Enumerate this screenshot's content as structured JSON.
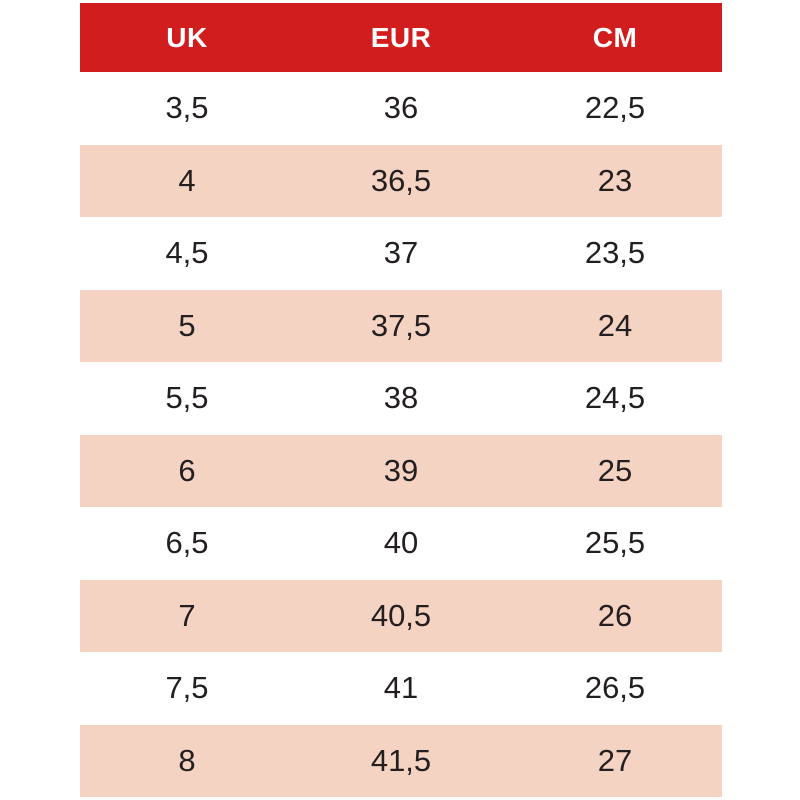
{
  "table": {
    "name": "shoe-size-conversion-table",
    "headers": [
      "UK",
      "EUR",
      "CM"
    ],
    "rows": [
      [
        "3,5",
        "36",
        "22,5"
      ],
      [
        "4",
        "36,5",
        "23"
      ],
      [
        "4,5",
        "37",
        "23,5"
      ],
      [
        "5",
        "37,5",
        "24"
      ],
      [
        "5,5",
        "38",
        "24,5"
      ],
      [
        "6",
        "39",
        "25"
      ],
      [
        "6,5",
        "40",
        "25,5"
      ],
      [
        "7",
        "40,5",
        "26"
      ],
      [
        "7,5",
        "41",
        "26,5"
      ],
      [
        "8",
        "41,5",
        "27"
      ]
    ]
  },
  "colors": {
    "header_bg": "#d21d1f",
    "header_text": "#ffffff",
    "row_bg_even": "#ffffff",
    "row_bg_odd": "#f5d3c3",
    "cell_text": "#231f20"
  }
}
